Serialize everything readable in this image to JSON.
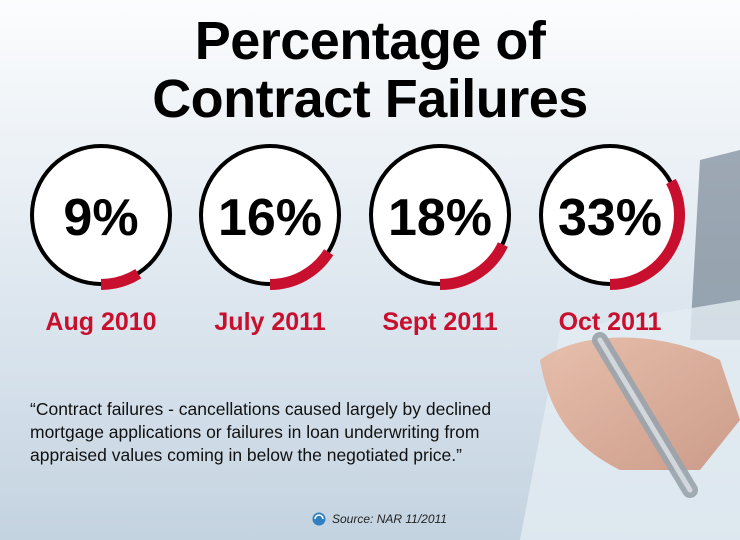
{
  "title_line1": "Percentage of",
  "title_line2": "Contract Failures",
  "colors": {
    "ring": "#000000",
    "arc": "#c8102e",
    "label": "#c8102e",
    "background": "#e9f0f6"
  },
  "chart_data": {
    "type": "gauge",
    "title": "Percentage of Contract Failures",
    "items": [
      {
        "label": "Aug 2010",
        "value": 9,
        "display": "9%"
      },
      {
        "label": "July 2011",
        "value": 16,
        "display": "16%"
      },
      {
        "label": "Sept 2011",
        "value": 18,
        "display": "18%"
      },
      {
        "label": "Oct 2011",
        "value": 33,
        "display": "33%"
      }
    ]
  },
  "quote": "“Contract failures - cancellations caused largely by declined mortgage applications or failures in loan underwriting from appraised values coming in below the negotiated price.”",
  "source": "Source: NAR 11/2011",
  "icons": {
    "source": "globe-icon"
  }
}
